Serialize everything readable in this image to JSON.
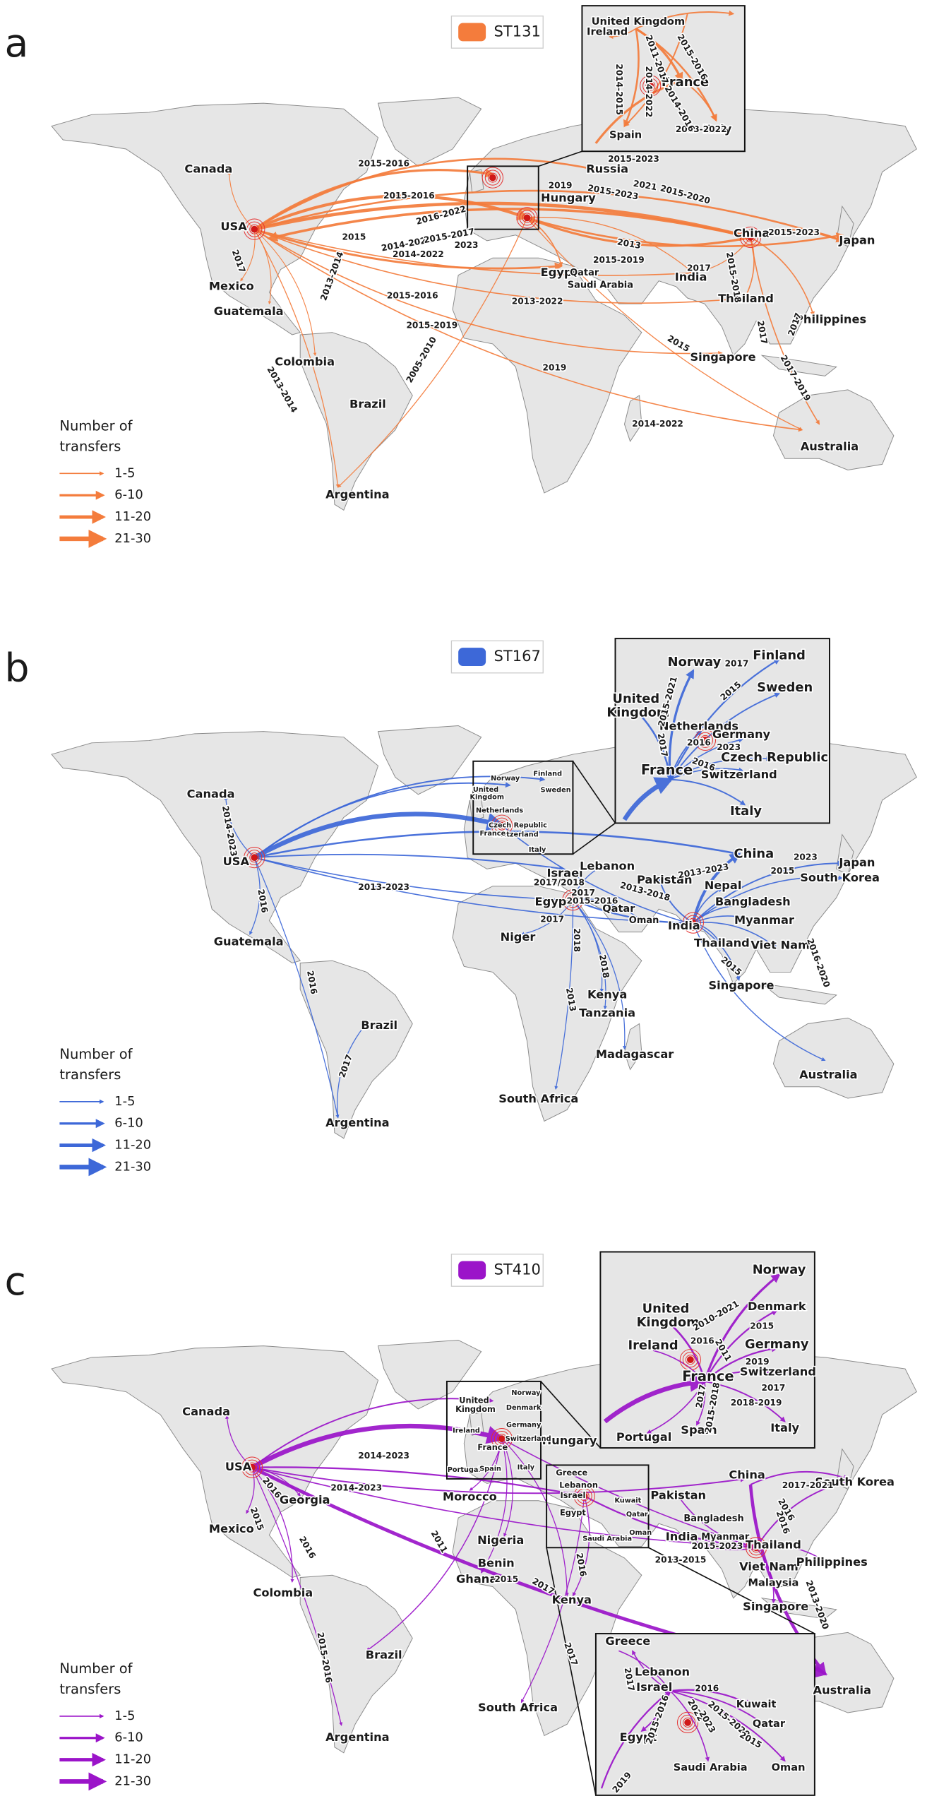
{
  "panels": [
    {
      "letter": "a",
      "lineage": "ST131",
      "legend_title": [
        "Number of",
        "transfers"
      ],
      "legend_items": [
        "1-5",
        "6-10",
        "11-20",
        "21-30"
      ],
      "countries": [
        "Canada",
        "USA",
        "Mexico",
        "Guatemala",
        "Colombia",
        "Brazil",
        "Argentina",
        "Russia",
        "Hungary",
        "Egypt",
        "Qatar",
        "Saudi Arabia",
        "India",
        "China",
        "Japan",
        "Thailand",
        "Philippines",
        "Singapore",
        "Australia",
        "United Kingdom",
        "Ireland",
        "France",
        "Spain",
        "Italy"
      ],
      "years": [
        "2015-2016",
        "2015-2016",
        "2016-2022",
        "2015",
        "2014-2022",
        "2015-2017",
        "2014-2022",
        "2023",
        "2019",
        "2015-2023",
        "2021",
        "2015-2020",
        "2015-2023",
        "2013",
        "2015-2019",
        "2017",
        "2013-2022",
        "2015-2016",
        "2015-2019",
        "2015",
        "2019",
        "2005-2010",
        "2013-2014",
        "2014-2022",
        "2015-2023",
        "2013-2014",
        "2017",
        "2015-2018",
        "2017",
        "2017",
        "2017-2019",
        "2013-2022",
        "2011-2017",
        "2015-2016",
        "2014-2015",
        "2014-2022",
        "2014-2016"
      ]
    },
    {
      "letter": "b",
      "lineage": "ST167",
      "legend_title": [
        "Number of",
        "transfers"
      ],
      "legend_items": [
        "1-5",
        "6-10",
        "11-20",
        "21-30"
      ],
      "countries": [
        "Canada",
        "USA",
        "Guatemala",
        "Brazil",
        "Argentina",
        "Israel",
        "Lebanon",
        "Egypt",
        "Qatar",
        "Oman",
        "Niger",
        "Kenya",
        "Tanzania",
        "Madagascar",
        "South Africa",
        "Pakistan",
        "China",
        "Nepal",
        "Bangladesh",
        "India",
        "Myanmar",
        "Thailand",
        "Viet Nam",
        "Singapore",
        "Japan",
        "South Korea",
        "Australia",
        "Norway",
        "Finland",
        "United Kingdom",
        "Sweden",
        "Netherlands",
        "Czech Republic",
        "Switzerland",
        "France",
        "Italy",
        "Norway",
        "Finland",
        "United Kingdom",
        "Sweden",
        "Netherlands",
        "Germany",
        "Czech Republic",
        "France",
        "Switzerland",
        "Italy"
      ],
      "years": [
        "2014-2023",
        "2013-2023",
        "2016",
        "2016",
        "2017",
        "2017/2018",
        "2017",
        "2015-2016",
        "2017",
        "2013-2018",
        "2013-2023",
        "2015",
        "2015",
        "2023",
        "2016-2020",
        "2018",
        "2018",
        "2013",
        "2015-2021",
        "2017",
        "2015",
        "2016",
        "2023",
        "2016",
        "2017"
      ]
    },
    {
      "letter": "c",
      "lineage": "ST410",
      "legend_title": [
        "Number of",
        "transfers"
      ],
      "legend_items": [
        "1-5",
        "6-10",
        "11-20",
        "21-30"
      ],
      "countries": [
        "Canada",
        "USA",
        "Georgia",
        "Mexico",
        "Colombia",
        "Brazil",
        "Argentina",
        "Morocco",
        "Nigeria",
        "Benin",
        "Ghana",
        "Kenya",
        "South Africa",
        "Hungary",
        "Pakistan",
        "India",
        "Bangladesh",
        "Myanmar",
        "China",
        "Thailand",
        "Viet Nam",
        "Malaysia",
        "Singapore",
        "South Korea",
        "Philippines",
        "Australia",
        "United Kingdom",
        "Norway",
        "Denmark",
        "Ireland",
        "Germany",
        "Switzerland",
        "France",
        "Portugal",
        "Spain",
        "Italy",
        "Greece",
        "Lebanon",
        "Israel",
        "Egypt",
        "Kuwait",
        "Qatar",
        "Oman",
        "Saudi Arabia",
        "Norway",
        "United Kingdom",
        "Denmark",
        "Ireland",
        "Germany",
        "Switzerland",
        "France",
        "Portugal",
        "Spain",
        "Italy",
        "Greece",
        "Lebanon",
        "Israel",
        "Egypt",
        "Kuwait",
        "Qatar",
        "Oman",
        "Saudi Arabia"
      ],
      "years": [
        "2014-2023",
        "2014-2023",
        "2016",
        "2015",
        "2016",
        "2015-2016",
        "2011",
        "2015",
        "2017",
        "2016",
        "2017",
        "2013-2015",
        "2015-2023",
        "2017-2021",
        "2016",
        "2013-2020",
        "2016",
        "2010-2021",
        "2015",
        "2016",
        "2011",
        "2019",
        "2017",
        "2018-2019",
        "2017",
        "2015-2018",
        "2017",
        "2016",
        "2015-2016",
        "2022",
        "2015-2020",
        "2023",
        "2015",
        "2019"
      ]
    }
  ]
}
